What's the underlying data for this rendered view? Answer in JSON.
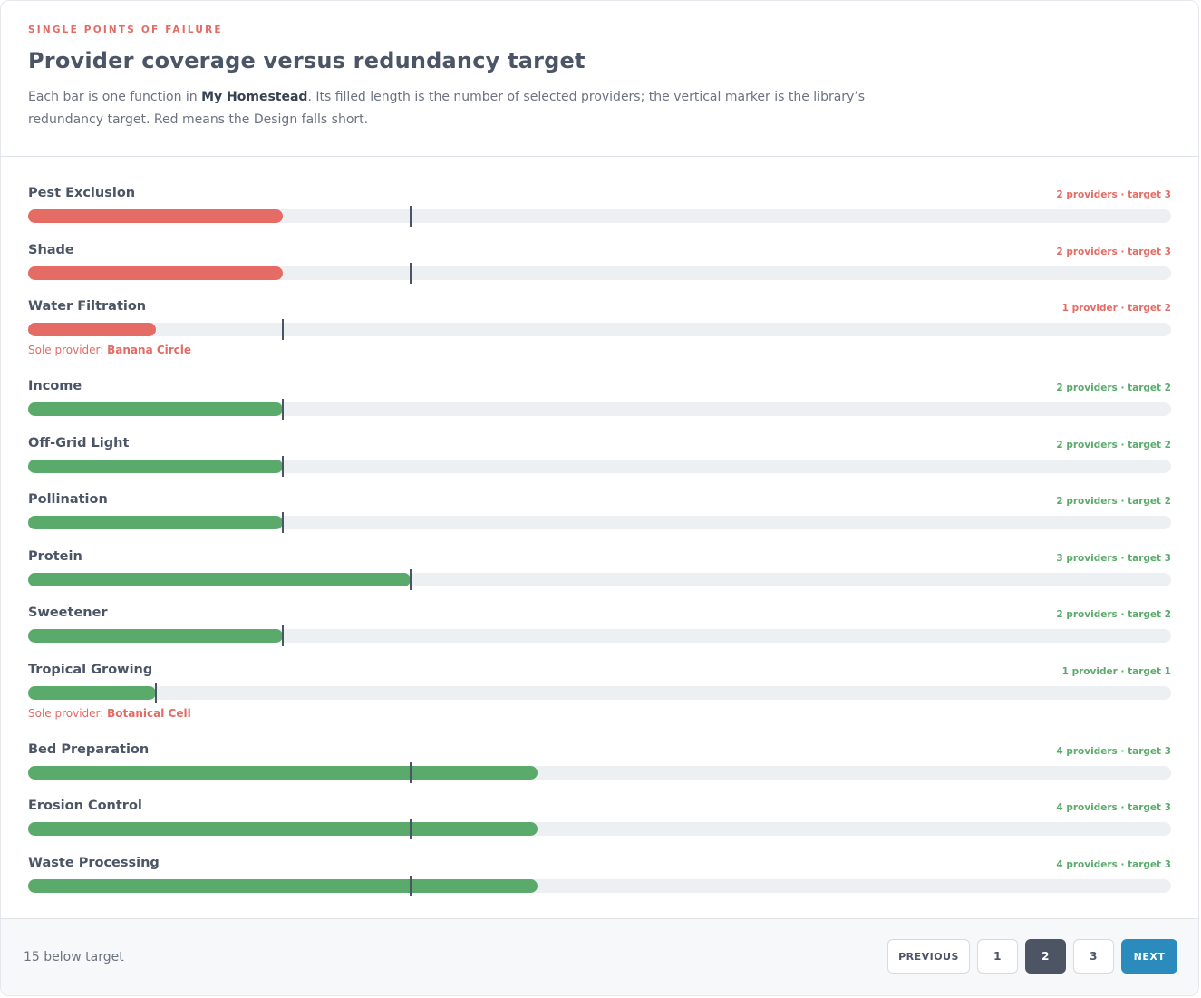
{
  "header": {
    "eyebrow": "SINGLE POINTS OF FAILURE",
    "title": "Provider coverage versus redundancy target",
    "desc_prefix": "Each bar is one function in ",
    "design_name": "My Homestead",
    "desc_suffix": ". Its filled length is the number of selected providers; the vertical marker is the library’s redundancy target. Red means the Design falls short."
  },
  "colors": {
    "below": "#e46c65",
    "meets": "#5aab6b",
    "marker": "#4b5565",
    "accent": "#2b8bbd"
  },
  "chart_data": {
    "type": "bar",
    "orientation": "horizontal",
    "xlim": [
      0,
      9
    ],
    "categories": [
      "Pest Exclusion",
      "Shade",
      "Water Filtration",
      "Income",
      "Off-Grid Light",
      "Pollination",
      "Protein",
      "Sweetener",
      "Tropical Growing",
      "Bed Preparation",
      "Erosion Control",
      "Waste Processing"
    ],
    "series": [
      {
        "values": [
          2,
          2,
          1,
          2,
          2,
          2,
          3,
          2,
          1,
          4,
          4,
          4
        ]
      }
    ],
    "targets": [
      3,
      3,
      2,
      2,
      2,
      2,
      3,
      2,
      1,
      3,
      3,
      3
    ],
    "labels": [
      "2 providers · target 3",
      "2 providers · target 3",
      "1 provider · target 2",
      "2 providers · target 2",
      "2 providers · target 2",
      "2 providers · target 2",
      "3 providers · target 3",
      "2 providers · target 2",
      "1 provider · target 1",
      "4 providers · target 3",
      "4 providers · target 3",
      "4 providers · target 3"
    ],
    "sole_providers": {
      "Water Filtration": "Banana Circle",
      "Tropical Growing": "Botanical Cell"
    }
  },
  "sole_label": "Sole provider: ",
  "footer": {
    "note": "15 below target",
    "previous": "PREVIOUS",
    "pages": [
      "1",
      "2",
      "3"
    ],
    "current_page": "2",
    "next": "NEXT"
  }
}
